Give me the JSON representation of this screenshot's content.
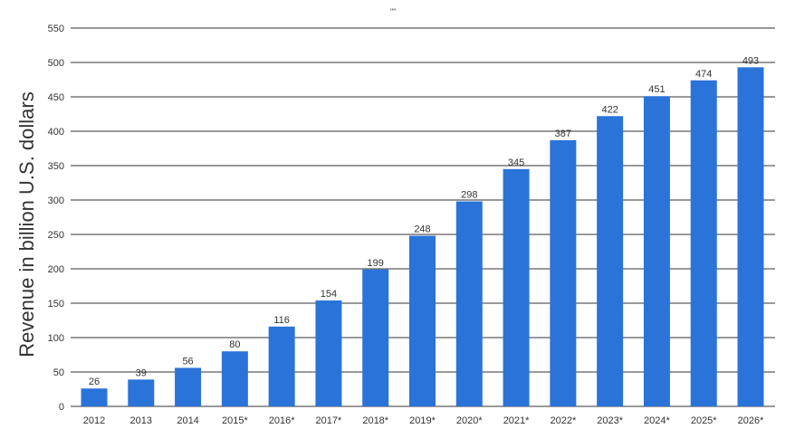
{
  "chart_data": {
    "type": "bar",
    "title": "",
    "top_mark": "\"\"",
    "xlabel": "",
    "ylabel": "Revenue in billion U.S. dollars",
    "categories": [
      "2012",
      "2013",
      "2014",
      "2015*",
      "2016*",
      "2017*",
      "2018*",
      "2019*",
      "2020*",
      "2021*",
      "2022*",
      "2023*",
      "2024*",
      "2025*",
      "2026*"
    ],
    "values": [
      26,
      39,
      56,
      80,
      116,
      154,
      199,
      248,
      298,
      345,
      387,
      422,
      451,
      474,
      493
    ],
    "ylim": [
      0,
      550
    ],
    "yticks": [
      0,
      50,
      100,
      150,
      200,
      250,
      300,
      350,
      400,
      450,
      500,
      550
    ],
    "grid": true,
    "legend": "none",
    "colors": {
      "bar": "#2a73d9",
      "grid": "#333333",
      "text": "#333333"
    }
  }
}
